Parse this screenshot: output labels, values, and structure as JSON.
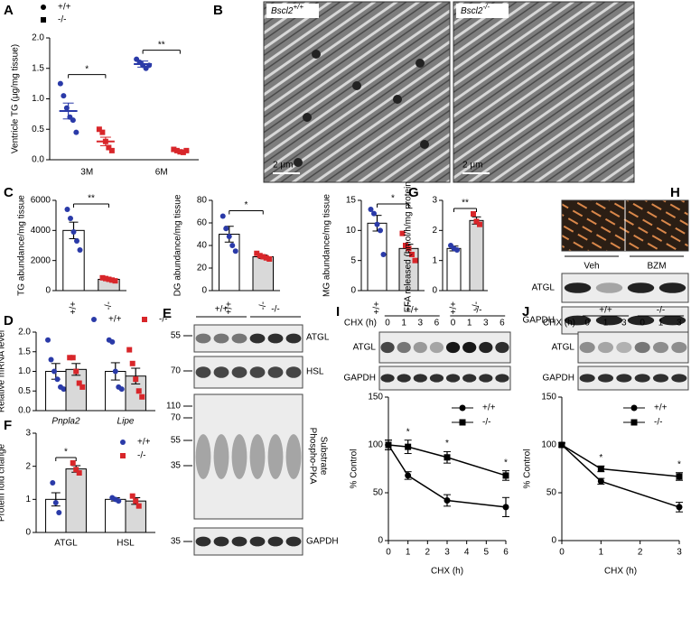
{
  "chart_data": [
    {
      "type": "dot",
      "panel": "A",
      "ylabel": "Ventricle TG (μg/mg tissue)",
      "categories": [
        "3M",
        "6M"
      ],
      "series": [
        {
          "name": "+/+",
          "color": "#2a3aa8",
          "marker": "circle",
          "values": [
            0.8,
            1.57
          ],
          "errors": [
            0.13,
            0.05
          ],
          "points": [
            [
              1.25,
              1.05,
              0.85,
              0.7,
              0.65,
              0.45
            ],
            [
              1.65,
              1.6,
              1.55,
              1.5,
              1.55
            ]
          ]
        },
        {
          "name": "-/-",
          "color": "#d8262a",
          "marker": "square",
          "values": [
            0.3,
            0.14
          ],
          "errors": [
            0.07,
            0.02
          ],
          "points": [
            [
              0.5,
              0.45,
              0.3,
              0.2,
              0.15
            ],
            [
              0.17,
              0.15,
              0.13,
              0.12,
              0.15
            ]
          ]
        }
      ],
      "legend_color": "#000000",
      "annotations": [
        "*",
        "**"
      ],
      "ylim": [
        0,
        2
      ],
      "yticks": [
        {
          "value": 0,
          "label": "0.0"
        },
        0.5,
        {
          "value": 1,
          "label": "1.0"
        },
        1.5,
        {
          "value": 2,
          "label": "2.0"
        }
      ]
    },
    {
      "type": "bar",
      "panel": "C",
      "ylabel": "TG abundance/mg tissue",
      "categories": [
        "+/+",
        "-/-"
      ],
      "values": [
        4000,
        750
      ],
      "errors": [
        550,
        60
      ],
      "points": [
        [
          5400,
          4800,
          3900,
          3300,
          2700
        ],
        [
          850,
          800,
          750,
          700,
          650
        ]
      ],
      "colors": [
        "#ffffff",
        "#d9d9d9"
      ],
      "point_colors": [
        "#2a3aa8",
        "#d8262a"
      ],
      "annotation": "**",
      "ylim": [
        0,
        6000
      ],
      "yticks": [
        0,
        2000,
        4000,
        6000
      ]
    },
    {
      "type": "bar",
      "ylabel": "DG abundance/mg tissue",
      "categories": [
        "+/+",
        "-/-"
      ],
      "values": [
        50,
        30
      ],
      "errors": [
        7,
        1.5
      ],
      "points": [
        [
          66,
          55,
          48,
          40,
          35
        ],
        [
          33,
          31,
          30,
          29,
          28
        ]
      ],
      "colors": [
        "#ffffff",
        "#d9d9d9"
      ],
      "point_colors": [
        "#2a3aa8",
        "#d8262a"
      ],
      "annotation": "*",
      "ylim": [
        0,
        80
      ],
      "yticks": [
        0,
        20,
        40,
        60,
        80
      ]
    },
    {
      "type": "bar",
      "ylabel": "MG abundance/mg tissue",
      "categories": [
        "+/+",
        "-/-"
      ],
      "values": [
        11.2,
        7
      ],
      "errors": [
        1.3,
        0.7
      ],
      "points": [
        [
          13.5,
          12.8,
          11,
          10,
          6
        ],
        [
          9.5,
          7.5,
          7,
          6,
          5
        ]
      ],
      "colors": [
        "#ffffff",
        "#d9d9d9"
      ],
      "point_colors": [
        "#2a3aa8",
        "#d8262a"
      ],
      "annotation": "*",
      "ylim": [
        0,
        15
      ],
      "yticks": [
        0,
        5,
        10,
        15
      ]
    },
    {
      "type": "bar",
      "panel": "G",
      "ylabel": "FFA released (nmol/h/mg protein)",
      "categories": [
        "+/+",
        "-/-"
      ],
      "values": [
        1.4,
        2.33
      ],
      "errors": [
        0.08,
        0.12
      ],
      "points": [
        [
          1.5,
          1.4,
          1.35
        ],
        [
          2.55,
          2.3,
          2.2
        ]
      ],
      "colors": [
        "#ffffff",
        "#d9d9d9"
      ],
      "point_colors": [
        "#2a3aa8",
        "#d8262a"
      ],
      "annotation": "**",
      "ylim": [
        0,
        3
      ],
      "yticks": [
        0,
        1,
        2,
        3
      ]
    },
    {
      "type": "bar",
      "panel": "D",
      "ylabel": "Relative mRNA level",
      "categories": [
        "Pnpla2",
        "Lipe"
      ],
      "italic_categories": true,
      "series": [
        {
          "name": "+/+",
          "color": "#2a3aa8",
          "bar_color": "#ffffff",
          "marker": "circle",
          "values": [
            1.0,
            1.0
          ],
          "errors": [
            0.2,
            0.22
          ],
          "points": [
            [
              1.8,
              1.3,
              1.0,
              0.8,
              0.6,
              0.55
            ],
            [
              1.8,
              1.75,
              1.0,
              0.6,
              0.55
            ]
          ]
        },
        {
          "name": "-/-",
          "color": "#d8262a",
          "bar_color": "#d9d9d9",
          "marker": "square",
          "values": [
            1.05,
            0.88
          ],
          "errors": [
            0.15,
            0.2
          ],
          "points": [
            [
              1.35,
              1.35,
              1.0,
              0.7,
              0.6
            ],
            [
              1.55,
              1.2,
              0.8,
              0.5,
              0.35
            ]
          ]
        }
      ],
      "ylim": [
        0,
        2
      ],
      "yticks": [
        {
          "value": 0,
          "label": "0.0"
        },
        0.5,
        {
          "value": 1,
          "label": "1.0"
        },
        1.5,
        {
          "value": 2,
          "label": "2.0"
        }
      ]
    },
    {
      "type": "bar",
      "panel": "F",
      "ylabel": "Protein fold change",
      "categories": [
        "ATGL",
        "HSL"
      ],
      "series": [
        {
          "name": "+/+",
          "color": "#2a3aa8",
          "bar_color": "#ffffff",
          "marker": "circle",
          "values": [
            1.0,
            1.0
          ],
          "errors": [
            0.2,
            0.05
          ],
          "points": [
            [
              1.5,
              0.9,
              0.6
            ],
            [
              1.05,
              1.0,
              0.95
            ]
          ]
        },
        {
          "name": "-/-",
          "color": "#d8262a",
          "bar_color": "#d9d9d9",
          "marker": "square",
          "values": [
            1.92,
            0.95
          ],
          "errors": [
            0.1,
            0.1
          ],
          "points": [
            [
              2.1,
              1.9,
              1.8
            ],
            [
              1.1,
              0.95,
              0.8
            ]
          ]
        }
      ],
      "annotations": [
        "*",
        null
      ],
      "ylim": [
        0,
        3
      ],
      "yticks": [
        0,
        1,
        2,
        3
      ]
    },
    {
      "type": "line",
      "panel": "I",
      "xlabel": "CHX (h)",
      "ylabel": "% Control",
      "x": [
        0,
        1,
        3,
        6
      ],
      "series": [
        {
          "name": "+/+",
          "color": "#000000",
          "marker": "circle",
          "values": [
            100,
            68,
            42,
            35
          ],
          "errors": [
            5,
            4,
            6,
            10
          ]
        },
        {
          "name": "-/-",
          "color": "#000000",
          "marker": "square",
          "values": [
            100,
            98,
            87,
            68
          ],
          "errors": [
            5,
            7,
            6,
            5
          ]
        }
      ],
      "annotations": [
        null,
        "*",
        "*",
        "*"
      ],
      "xlim": [
        0,
        6
      ],
      "xticks": [
        0,
        1,
        2,
        3,
        4,
        5,
        6
      ],
      "ylim": [
        0,
        150
      ],
      "yticks": [
        0,
        50,
        100,
        150
      ]
    },
    {
      "type": "line",
      "panel": "J",
      "xlabel": "CHX (h)",
      "ylabel": "% Control",
      "x": [
        0,
        1,
        3
      ],
      "series": [
        {
          "name": "+/+",
          "color": "#000000",
          "marker": "circle",
          "values": [
            100,
            62,
            35
          ],
          "errors": [
            2,
            3,
            5
          ]
        },
        {
          "name": "-/-",
          "color": "#000000",
          "marker": "square",
          "values": [
            100,
            75,
            67
          ],
          "errors": [
            2,
            3,
            4
          ]
        }
      ],
      "annotations": [
        null,
        "*",
        "*"
      ],
      "xlim": [
        0,
        3
      ],
      "xticks": [
        0,
        1,
        2,
        3
      ],
      "ylim": [
        0,
        150
      ],
      "yticks": [
        0,
        50,
        100,
        150
      ]
    }
  ],
  "figure": {
    "B": {
      "panel": "B",
      "images": [
        {
          "genotype": "Bscl2",
          "sup": "+/+",
          "scale": "2 μm"
        },
        {
          "genotype": "Bscl2",
          "sup": "-/-",
          "scale": "2 μm"
        }
      ]
    },
    "E": {
      "panel": "E",
      "groups": [
        "+/+",
        "-/-"
      ],
      "bands": [
        {
          "label": [
            "ATGL"
          ],
          "markers": [
            "55"
          ]
        },
        {
          "label": [
            "HSL"
          ],
          "markers": [
            "70"
          ]
        },
        {
          "label": [
            "Phospho-PKA",
            "Substrate"
          ],
          "markers": [
            "110",
            "70",
            "55",
            "35"
          ]
        },
        {
          "label": [
            "GAPDH"
          ],
          "markers": [
            "35"
          ]
        }
      ]
    },
    "H": {
      "panel": "H",
      "groups": [
        "Veh",
        "BZM"
      ],
      "bands": [
        "ATGL",
        "GAPDH"
      ]
    },
    "I": {
      "groups": [
        "+/+",
        "-/-"
      ],
      "lane_title": "CHX (h)",
      "lanes": [
        "0",
        "1",
        "3",
        "6",
        "0",
        "1",
        "3",
        "6"
      ],
      "bands": [
        "ATGL",
        "GAPDH"
      ]
    },
    "J": {
      "groups": [
        "+/+",
        "-/-"
      ],
      "lane_title": "CHX (h)",
      "lanes": [
        "0",
        "1",
        "3",
        "0",
        "1",
        "3"
      ],
      "bands": [
        "ATGL",
        "GAPDH"
      ]
    }
  }
}
